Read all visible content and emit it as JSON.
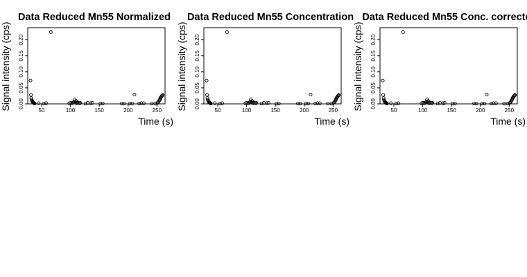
{
  "chart_data": [
    {
      "type": "scatter",
      "title": "Data Reduced Mn55 Normalized",
      "xlabel": "Time (s)",
      "ylabel": "Signal intensity (cps)",
      "xlim": [
        26,
        264
      ],
      "ylim": [
        0,
        0.238
      ],
      "xticks": [
        50,
        100,
        150,
        200,
        250
      ],
      "yticks": [
        0.0,
        0.05,
        0.1,
        0.15,
        0.2
      ],
      "ytick_labels": [
        "0.00",
        "0.05",
        "0.10",
        "0.15",
        "0.20"
      ],
      "grid": false,
      "x": [
        30.8,
        31.5,
        32.2,
        32.9,
        33.6,
        34.3,
        35.0,
        35.7,
        36.4,
        37.1,
        38.0,
        45.0,
        54.0,
        58.0,
        66.0,
        98.0,
        100.5,
        103.0,
        104.5,
        106.0,
        107.5,
        108.5,
        109.5,
        111.0,
        112.5,
        114.0,
        116.0,
        117.0,
        126.0,
        130.0,
        135.0,
        138.0,
        152.0,
        156.0,
        189.0,
        193.0,
        203.0,
        207.0,
        211.0,
        219.0,
        223.0,
        227.0,
        241.0,
        247.0,
        251.0,
        252.5,
        253.5,
        254.5,
        255.5,
        256.3,
        257.2,
        258.0,
        259.0,
        260.0
      ],
      "y": [
        0.073,
        0.028,
        0.018,
        0.013,
        0.009,
        0.007,
        0.005,
        0.004,
        0.003,
        0.002,
        0.001,
        0.002,
        0.001,
        0.002,
        0.224,
        0.002,
        0.003,
        0.002,
        0.004,
        0.006,
        0.014,
        0.004,
        0.009,
        0.002,
        0.005,
        0.003,
        0.002,
        0.003,
        0.001,
        0.003,
        0.002,
        0.003,
        0.001,
        0.001,
        0.001,
        0.001,
        0.001,
        0.001,
        0.029,
        0.001,
        0.002,
        0.002,
        0.001,
        0.001,
        0.003,
        0.006,
        0.009,
        0.012,
        0.016,
        0.019,
        0.021,
        0.024,
        0.026,
        0.028
      ]
    },
    {
      "type": "scatter",
      "title": "Data Reduced Mn55 Concentration",
      "xlabel": "Time (s)",
      "ylabel": "Signal intensity (cps)",
      "xlim": [
        26,
        264
      ],
      "ylim": [
        0,
        0.238
      ],
      "xticks": [
        50,
        100,
        150,
        200,
        250
      ],
      "yticks": [
        0.0,
        0.05,
        0.1,
        0.15,
        0.2
      ],
      "ytick_labels": [
        "0.00",
        "0.05",
        "0.10",
        "0.15",
        "0.20"
      ],
      "grid": false,
      "x": [
        30.8,
        31.5,
        32.2,
        32.9,
        33.6,
        34.3,
        35.0,
        35.7,
        36.4,
        37.1,
        38.0,
        45.0,
        54.0,
        58.0,
        66.0,
        98.0,
        100.5,
        103.0,
        104.5,
        106.0,
        107.5,
        108.5,
        109.5,
        111.0,
        112.5,
        114.0,
        116.0,
        117.0,
        126.0,
        130.0,
        135.0,
        138.0,
        152.0,
        156.0,
        189.0,
        193.0,
        203.0,
        207.0,
        211.0,
        219.0,
        223.0,
        227.0,
        241.0,
        247.0,
        251.0,
        252.5,
        253.5,
        254.5,
        255.5,
        256.3,
        257.2,
        258.0,
        259.0,
        260.0
      ],
      "y": [
        0.073,
        0.028,
        0.018,
        0.013,
        0.009,
        0.007,
        0.005,
        0.004,
        0.003,
        0.002,
        0.001,
        0.002,
        0.001,
        0.002,
        0.224,
        0.002,
        0.003,
        0.002,
        0.004,
        0.006,
        0.014,
        0.004,
        0.009,
        0.002,
        0.005,
        0.003,
        0.002,
        0.003,
        0.001,
        0.003,
        0.002,
        0.003,
        0.001,
        0.001,
        0.001,
        0.001,
        0.001,
        0.001,
        0.029,
        0.001,
        0.002,
        0.002,
        0.001,
        0.001,
        0.003,
        0.006,
        0.009,
        0.012,
        0.016,
        0.019,
        0.021,
        0.024,
        0.026,
        0.028
      ]
    },
    {
      "type": "scatter",
      "title": "Data Reduced Mn55 Conc. correcte",
      "xlabel": "Time (s)",
      "ylabel": "Signal intensity (cps)",
      "xlim": [
        26,
        264
      ],
      "ylim": [
        0,
        0.238
      ],
      "xticks": [
        50,
        100,
        150,
        200,
        250
      ],
      "yticks": [
        0.0,
        0.05,
        0.1,
        0.15,
        0.2
      ],
      "ytick_labels": [
        "0.00",
        "0.05",
        "0.10",
        "0.15",
        "0.20"
      ],
      "grid": false,
      "x": [
        30.8,
        31.5,
        32.2,
        32.9,
        33.6,
        34.3,
        35.0,
        35.7,
        36.4,
        37.1,
        38.0,
        45.0,
        54.0,
        58.0,
        66.0,
        98.0,
        100.5,
        103.0,
        104.5,
        106.0,
        107.5,
        108.5,
        109.5,
        111.0,
        112.5,
        114.0,
        116.0,
        117.0,
        126.0,
        130.0,
        135.0,
        138.0,
        152.0,
        156.0,
        189.0,
        193.0,
        203.0,
        207.0,
        211.0,
        219.0,
        223.0,
        227.0,
        241.0,
        247.0,
        251.0,
        252.5,
        253.5,
        254.5,
        255.5,
        256.3,
        257.2,
        258.0,
        259.0,
        260.0
      ],
      "y": [
        0.073,
        0.028,
        0.018,
        0.013,
        0.009,
        0.007,
        0.005,
        0.004,
        0.003,
        0.002,
        0.001,
        0.002,
        0.001,
        0.002,
        0.224,
        0.002,
        0.003,
        0.002,
        0.004,
        0.006,
        0.014,
        0.004,
        0.009,
        0.002,
        0.005,
        0.003,
        0.002,
        0.003,
        0.001,
        0.003,
        0.002,
        0.003,
        0.001,
        0.001,
        0.001,
        0.001,
        0.001,
        0.001,
        0.029,
        0.001,
        0.002,
        0.002,
        0.001,
        0.001,
        0.003,
        0.006,
        0.009,
        0.012,
        0.016,
        0.019,
        0.021,
        0.024,
        0.026,
        0.028
      ]
    }
  ]
}
